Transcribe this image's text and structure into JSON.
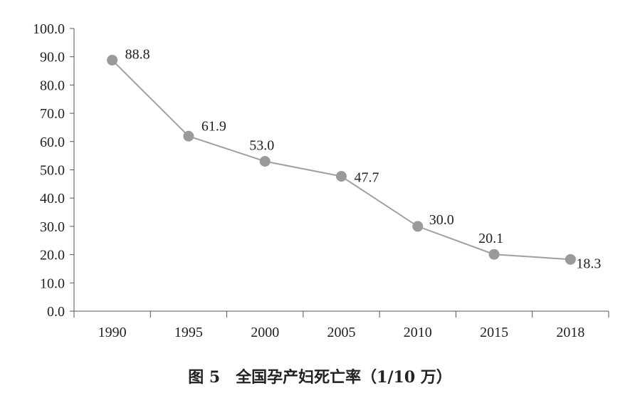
{
  "chart_data": {
    "type": "line",
    "title": "图 5　全国孕产妇死亡率（1/10 万）",
    "xlabel": "",
    "ylabel": "",
    "categories": [
      "1990",
      "1995",
      "2000",
      "2005",
      "2010",
      "2015",
      "2018"
    ],
    "values": [
      88.8,
      61.9,
      53.0,
      47.7,
      30.0,
      20.1,
      18.3
    ],
    "data_labels": [
      "88.8",
      "61.9",
      "53.0",
      "47.7",
      "30.0",
      "20.1",
      "18.3"
    ],
    "ylim": [
      0,
      100
    ],
    "yticks": [
      "0.0",
      "10.0",
      "20.0",
      "30.0",
      "40.0",
      "50.0",
      "60.0",
      "70.0",
      "80.0",
      "90.0",
      "100.0"
    ],
    "grid": false,
    "legend": "none",
    "colors": {
      "line": "#a0a0a0",
      "marker": "#9a9a9a",
      "axis": "#555555"
    }
  }
}
